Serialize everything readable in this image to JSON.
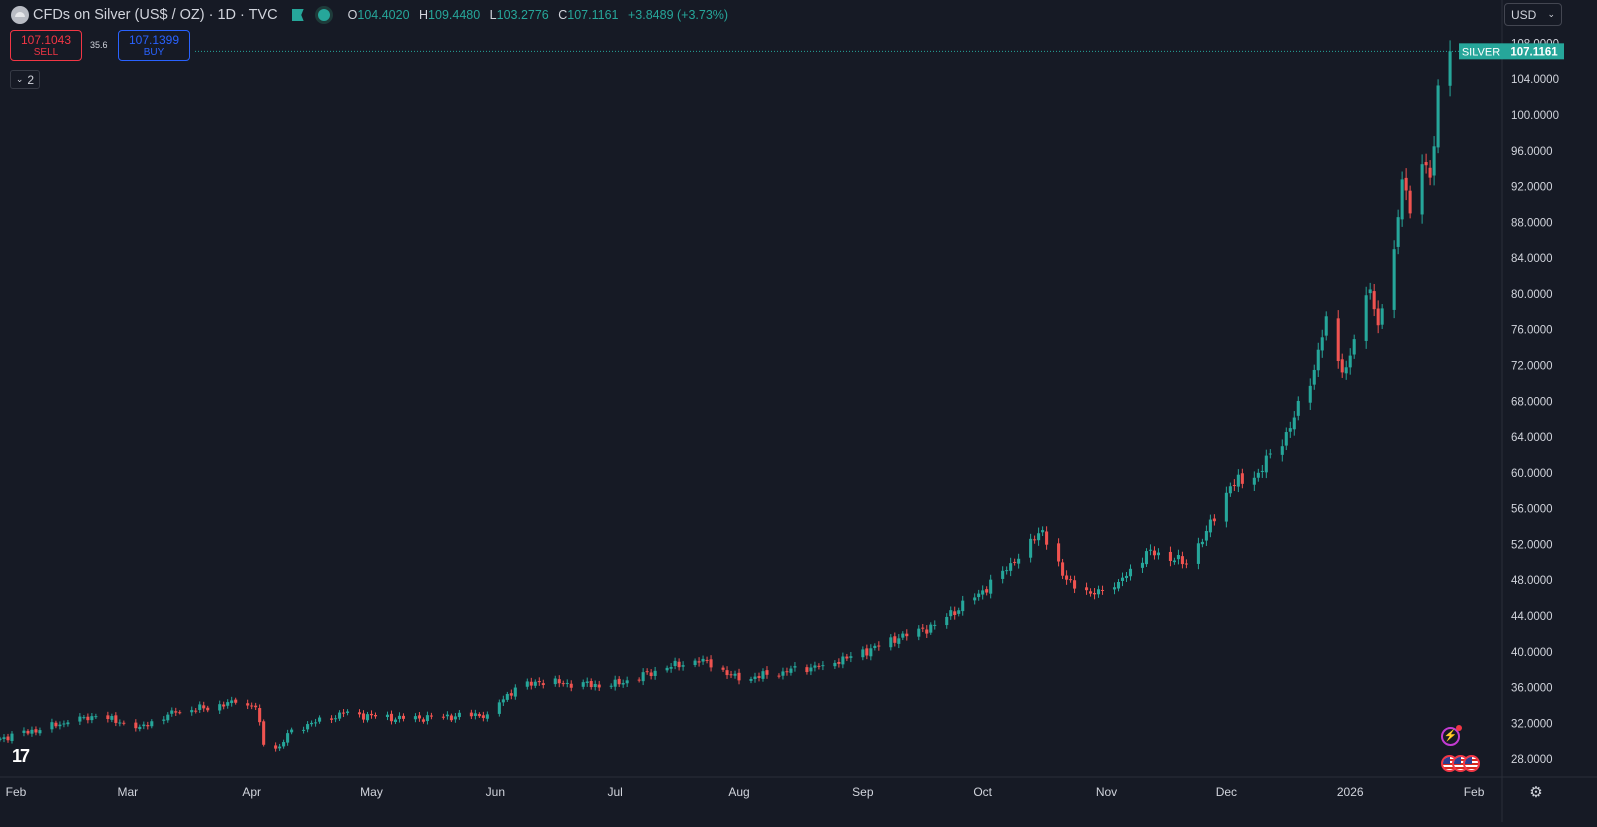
{
  "header": {
    "title": "CFDs on Silver (US$ / OZ) · 1D · TVC",
    "open_label": "O",
    "open": "104.4020",
    "high_label": "H",
    "high": "109.4480",
    "low_label": "L",
    "low": "103.2776",
    "close_label": "C",
    "close": "107.1161",
    "change": "+3.8489 (+3.73%)"
  },
  "trade": {
    "sell_price": "107.1043",
    "sell_label": "SELL",
    "spread": "35.6",
    "buy_price": "107.1399",
    "buy_label": "BUY"
  },
  "indicators_toggle": {
    "count": "2"
  },
  "currency": {
    "selected": "USD"
  },
  "price_tag": {
    "symbol": "SILVER",
    "value": "107.1161"
  },
  "icons": {
    "settings": "gear-icon",
    "events": "lightning-icon",
    "flags": "us-flag-icon",
    "logo": "tradingview-logo"
  },
  "colors": {
    "up": "#26a69a",
    "down": "#ef5350",
    "background": "#161a25",
    "sell": "#f23645",
    "buy": "#2962ff"
  },
  "chart_data": {
    "type": "candlestick",
    "ylim": [
      26,
      109.5
    ],
    "yticks": [
      28,
      32,
      36,
      40,
      44,
      48,
      52,
      56,
      60,
      64,
      68,
      72,
      76,
      80,
      84,
      88,
      92,
      96,
      100,
      104,
      108
    ],
    "ytick_labels": [
      "28.0000",
      "32.0000",
      "36.0000",
      "40.0000",
      "44.0000",
      "48.0000",
      "52.0000",
      "56.0000",
      "60.0000",
      "64.0000",
      "68.0000",
      "72.0000",
      "76.0000",
      "80.0000",
      "84.0000",
      "88.0000",
      "92.0000",
      "96.0000",
      "100.0000",
      "104.0000",
      "108.0000"
    ],
    "x_ticks": [
      {
        "label": "Feb",
        "date": "2025-02-01"
      },
      {
        "label": "Mar",
        "date": "2025-03-01"
      },
      {
        "label": "Apr",
        "date": "2025-04-01"
      },
      {
        "label": "May",
        "date": "2025-05-01"
      },
      {
        "label": "Jun",
        "date": "2025-06-01"
      },
      {
        "label": "Jul",
        "date": "2025-07-01"
      },
      {
        "label": "Aug",
        "date": "2025-08-01"
      },
      {
        "label": "Sep",
        "date": "2025-09-01"
      },
      {
        "label": "Oct",
        "date": "2025-10-01"
      },
      {
        "label": "Nov",
        "date": "2025-11-01"
      },
      {
        "label": "Dec",
        "date": "2025-12-01"
      },
      {
        "label": "2026",
        "date": "2026-01-01"
      },
      {
        "label": "Feb",
        "date": "2026-02-01"
      }
    ],
    "x_range": [
      "2025-01-28",
      "2026-02-08"
    ],
    "last_price": 107.1161,
    "close_anchors": [
      [
        "2025-01-28",
        30.3
      ],
      [
        "2025-02-14",
        32.1
      ],
      [
        "2025-02-21",
        32.8
      ],
      [
        "2025-03-04",
        31.6
      ],
      [
        "2025-03-13",
        33.2
      ],
      [
        "2025-03-28",
        34.3
      ],
      [
        "2025-04-02",
        33.8
      ],
      [
        "2025-04-04",
        29.6
      ],
      [
        "2025-04-08",
        29.4
      ],
      [
        "2025-04-11",
        31.3
      ],
      [
        "2025-04-24",
        33.1
      ],
      [
        "2025-05-09",
        32.5
      ],
      [
        "2025-05-30",
        33.0
      ],
      [
        "2025-06-06",
        36.0
      ],
      [
        "2025-06-12",
        36.6
      ],
      [
        "2025-06-30",
        36.2
      ],
      [
        "2025-07-14",
        38.2
      ],
      [
        "2025-07-23",
        39.2
      ],
      [
        "2025-08-01",
        36.8
      ],
      [
        "2025-08-12",
        37.8
      ],
      [
        "2025-08-22",
        38.5
      ],
      [
        "2025-08-29",
        39.5
      ],
      [
        "2025-09-10",
        41.5
      ],
      [
        "2025-09-19",
        43.0
      ],
      [
        "2025-09-30",
        46.5
      ],
      [
        "2025-10-09",
        50.0
      ],
      [
        "2025-10-14",
        52.5
      ],
      [
        "2025-10-16",
        53.6
      ],
      [
        "2025-10-21",
        48.5
      ],
      [
        "2025-10-28",
        46.5
      ],
      [
        "2025-11-04",
        47.8
      ],
      [
        "2025-11-12",
        51.4
      ],
      [
        "2025-11-18",
        50.2
      ],
      [
        "2025-11-21",
        49.8
      ],
      [
        "2025-11-26",
        53.5
      ],
      [
        "2025-12-02",
        58.5
      ],
      [
        "2025-12-09",
        60.0
      ],
      [
        "2025-12-17",
        65.0
      ],
      [
        "2025-12-23",
        71.5
      ],
      [
        "2025-12-26",
        77.5
      ],
      [
        "2025-12-29",
        72.5
      ],
      [
        "2025-12-31",
        71.8
      ],
      [
        "2026-01-06",
        80.5
      ],
      [
        "2026-01-08",
        76.5
      ],
      [
        "2026-01-12",
        85.0
      ],
      [
        "2026-01-14",
        92.8
      ],
      [
        "2026-01-16",
        89.0
      ],
      [
        "2026-01-19",
        94.5
      ],
      [
        "2026-01-21",
        93.0
      ],
      [
        "2026-01-22",
        96.5
      ],
      [
        "2026-01-23",
        103.3
      ],
      [
        "2026-01-26",
        107.1161
      ]
    ]
  }
}
